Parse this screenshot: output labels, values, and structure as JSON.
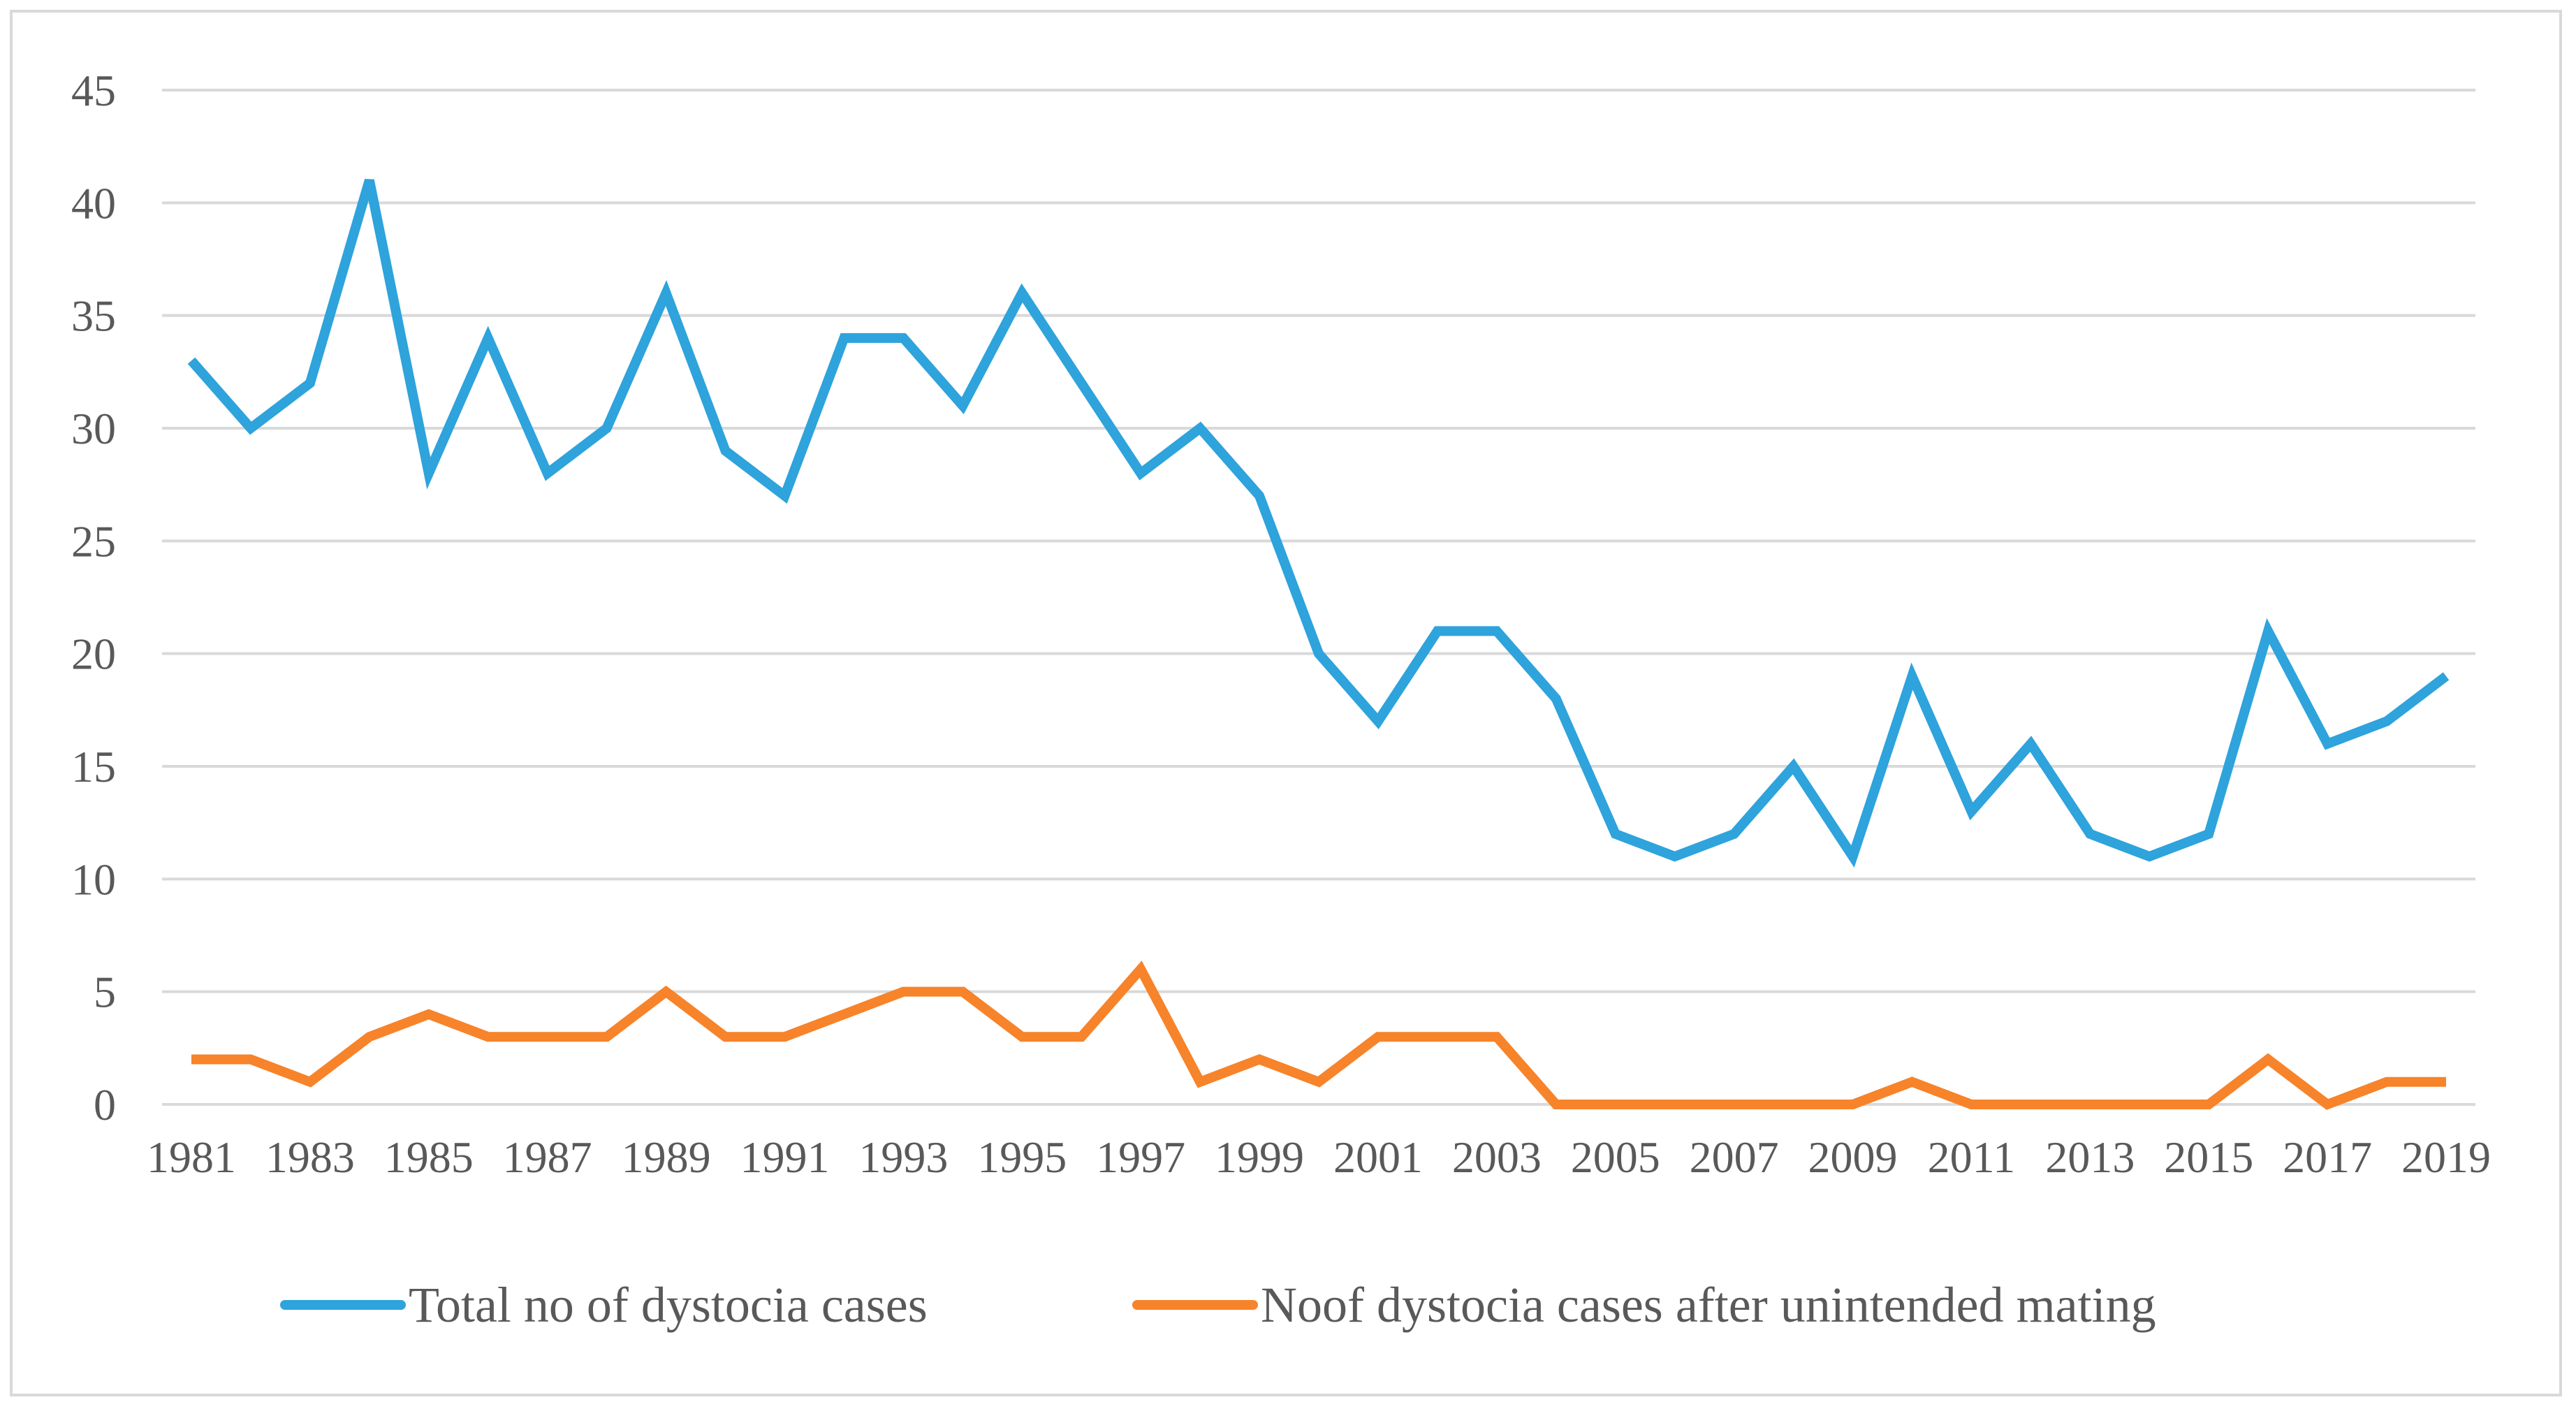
{
  "chart_data": {
    "type": "line",
    "title": "",
    "xlabel": "",
    "ylabel": "",
    "ylim": [
      0,
      45
    ],
    "y_ticks": [
      "0",
      "5",
      "10",
      "15",
      "20",
      "25",
      "30",
      "35",
      "40",
      "45"
    ],
    "x": [
      1981,
      1982,
      1983,
      1984,
      1985,
      1986,
      1987,
      1988,
      1989,
      1990,
      1991,
      1992,
      1993,
      1994,
      1995,
      1996,
      1997,
      1998,
      1999,
      2000,
      2001,
      2002,
      2003,
      2004,
      2005,
      2006,
      2007,
      2008,
      2009,
      2010,
      2011,
      2012,
      2013,
      2014,
      2015,
      2016,
      2017,
      2018,
      2019
    ],
    "x_tick_labels": [
      "1981",
      "1983",
      "1985",
      "1987",
      "1989",
      "1991",
      "1993",
      "1995",
      "1997",
      "1999",
      "2001",
      "2003",
      "2005",
      "2007",
      "2009",
      "2011",
      "2013",
      "2015",
      "2017",
      "2019"
    ],
    "grid": true,
    "legend_position": "bottom",
    "series": [
      {
        "name": "Total no of dystocia cases",
        "color": "#2ea3dc",
        "values": [
          33,
          30,
          32,
          41,
          28,
          34,
          28,
          30,
          36,
          29,
          27,
          34,
          34,
          31,
          36,
          32,
          28,
          30,
          27,
          20,
          17,
          21,
          21,
          18,
          12,
          11,
          12,
          15,
          11,
          19,
          13,
          16,
          12,
          11,
          12,
          21,
          16,
          17,
          19
        ]
      },
      {
        "name": "Noof dystocia cases after unintended mating",
        "color": "#f7832a",
        "values": [
          2,
          2,
          1,
          3,
          4,
          3,
          3,
          3,
          5,
          3,
          3,
          4,
          5,
          5,
          3,
          3,
          6,
          1,
          2,
          1,
          3,
          3,
          3,
          0,
          0,
          0,
          0,
          0,
          0,
          1,
          0,
          0,
          0,
          0,
          0,
          2,
          0,
          1,
          1
        ]
      }
    ]
  }
}
